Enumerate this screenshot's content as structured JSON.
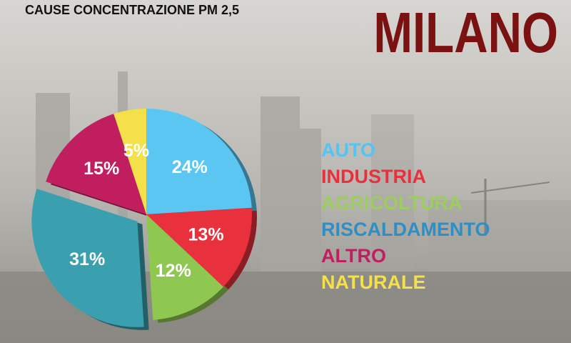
{
  "chart_data": {
    "type": "pie",
    "title": "CAUSE CONCENTRAZIONE PM 2,5",
    "subtitle": "MILANO",
    "categories": [
      "AUTO",
      "INDUSTRIA",
      "AGRICOLTURA",
      "RISCALDAMENTO",
      "ALTRO",
      "NATURALE"
    ],
    "values": [
      24,
      13,
      12,
      31,
      15,
      5
    ],
    "value_labels": [
      "24%",
      "13%",
      "12%",
      "31%",
      "15%",
      "5%"
    ],
    "colors": [
      "#5cc6f2",
      "#e8313c",
      "#8fc851",
      "#3a9fae",
      "#c01e5e",
      "#f3e04a"
    ],
    "legend_colors": [
      "#55c3f3",
      "#e8313c",
      "#9ccd5e",
      "#2f8fc4",
      "#c01e5e",
      "#f3e04a"
    ],
    "exploded": "RISCALDAMENTO"
  }
}
